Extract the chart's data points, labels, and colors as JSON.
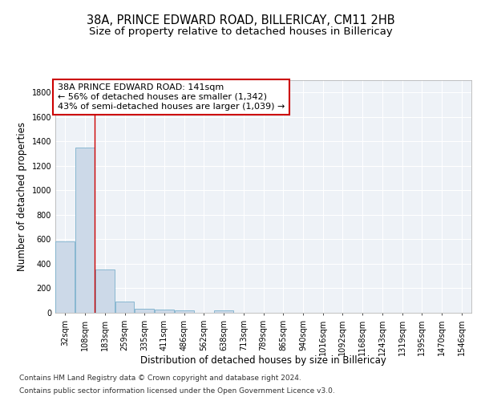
{
  "title_line1": "38A, PRINCE EDWARD ROAD, BILLERICAY, CM11 2HB",
  "title_line2": "Size of property relative to detached houses in Billericay",
  "xlabel": "Distribution of detached houses by size in Billericay",
  "ylabel": "Number of detached properties",
  "bar_color": "#ccd9e8",
  "bar_edge_color": "#7ab0cc",
  "bin_labels": [
    "32sqm",
    "108sqm",
    "183sqm",
    "259sqm",
    "335sqm",
    "411sqm",
    "486sqm",
    "562sqm",
    "638sqm",
    "713sqm",
    "789sqm",
    "865sqm",
    "940sqm",
    "1016sqm",
    "1092sqm",
    "1168sqm",
    "1243sqm",
    "1319sqm",
    "1395sqm",
    "1470sqm",
    "1546sqm"
  ],
  "bar_heights": [
    580,
    1350,
    355,
    90,
    30,
    25,
    18,
    0,
    18,
    0,
    0,
    0,
    0,
    0,
    0,
    0,
    0,
    0,
    0,
    0,
    0
  ],
  "ylim": [
    0,
    1900
  ],
  "yticks": [
    0,
    200,
    400,
    600,
    800,
    1000,
    1200,
    1400,
    1600,
    1800
  ],
  "red_line_x": 1.5,
  "annotation_title": "38A PRINCE EDWARD ROAD: 141sqm",
  "annotation_line2": "← 56% of detached houses are smaller (1,342)",
  "annotation_line3": "43% of semi-detached houses are larger (1,039) →",
  "annotation_box_color": "#ffffff",
  "annotation_box_edge": "#cc0000",
  "footer_line1": "Contains HM Land Registry data © Crown copyright and database right 2024.",
  "footer_line2": "Contains public sector information licensed under the Open Government Licence v3.0.",
  "background_color": "#eef2f7",
  "grid_color": "#ffffff",
  "title_fontsize": 10.5,
  "subtitle_fontsize": 9.5,
  "ylabel_fontsize": 8.5,
  "xlabel_fontsize": 8.5,
  "tick_fontsize": 7,
  "annotation_fontsize": 8,
  "footer_fontsize": 6.5
}
